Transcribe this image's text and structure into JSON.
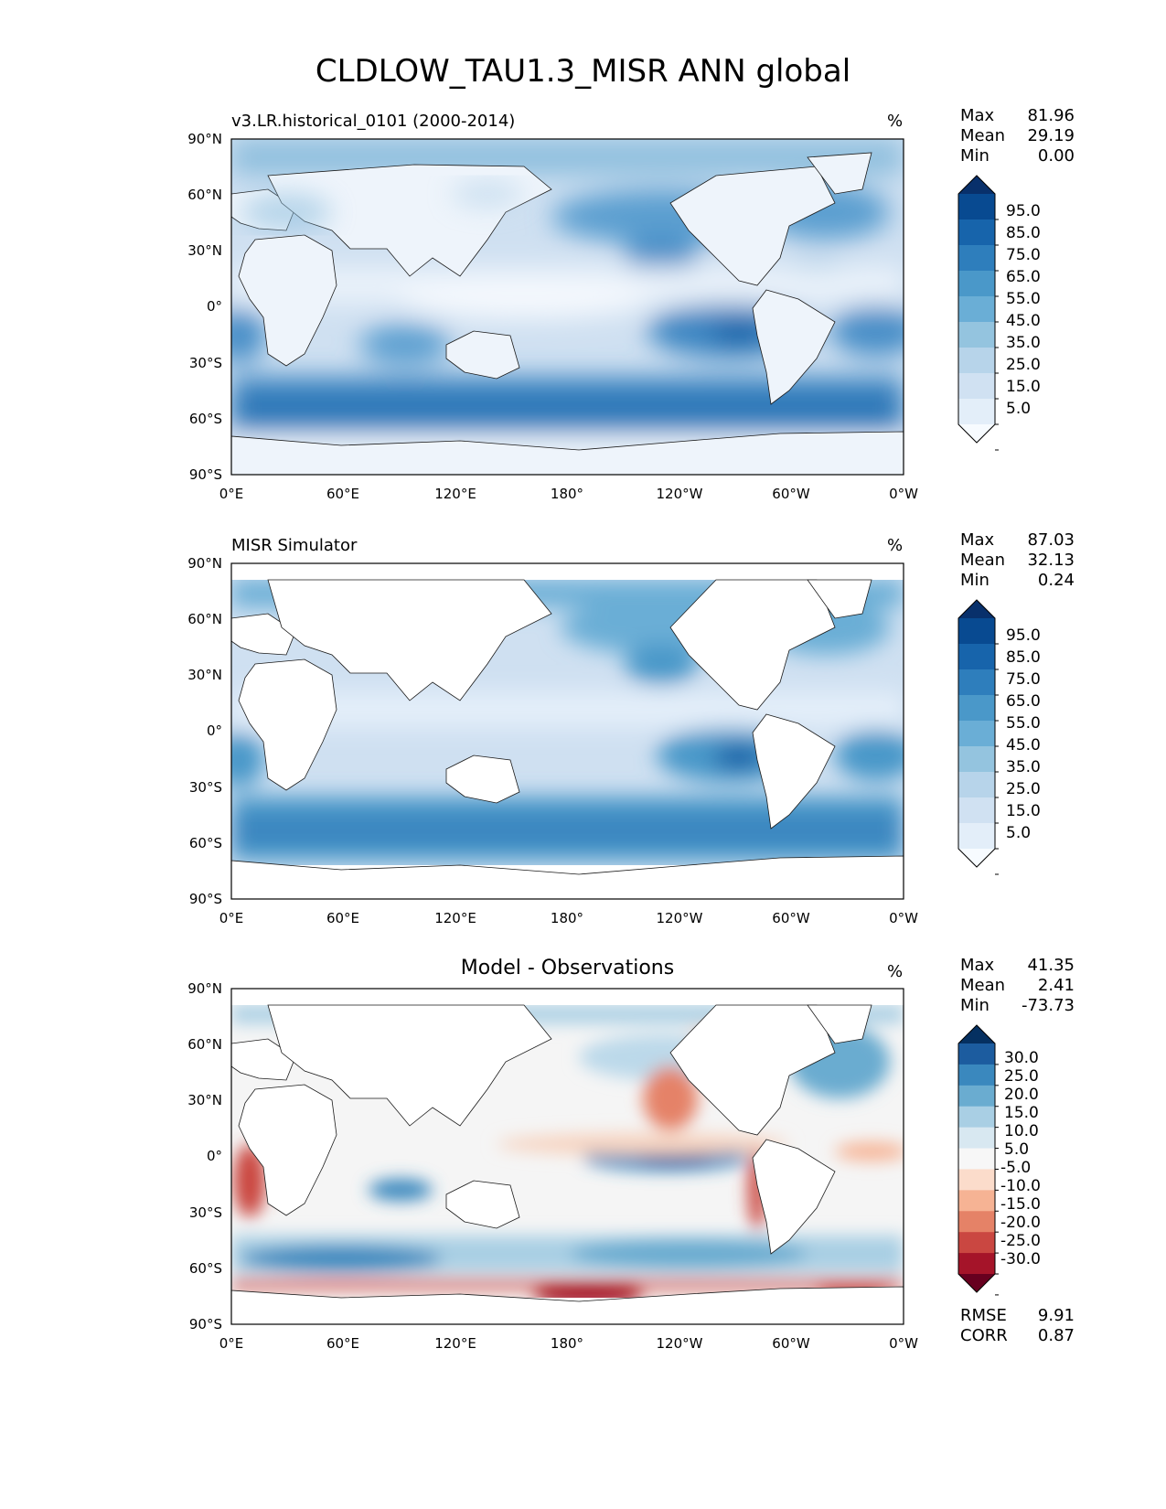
{
  "figure": {
    "title": "CLDLOW_TAU1.3_MISR ANN global"
  },
  "axes": {
    "lat_ticks": [
      "90°N",
      "60°N",
      "30°N",
      "0°",
      "30°S",
      "60°S",
      "90°S"
    ],
    "lon_ticks": [
      "0°E",
      "60°E",
      "120°E",
      "180°",
      "120°W",
      "60°W",
      "0°W"
    ]
  },
  "panels": [
    {
      "id": "model",
      "title": "v3.LR.historical_0101 (2000-2014)",
      "unit": "%",
      "stats": [
        {
          "label": "Max",
          "value": "81.96"
        },
        {
          "label": "Mean",
          "value": "29.19"
        },
        {
          "label": "Min",
          "value": "0.00"
        }
      ],
      "colorbar": {
        "ticks": [
          "95.0",
          "85.0",
          "75.0",
          "65.0",
          "55.0",
          "45.0",
          "35.0",
          "25.0",
          "15.0",
          "5.0"
        ],
        "colors": [
          "#f7fbff",
          "#e3eef9",
          "#d0e1f2",
          "#b7d4ea",
          "#94c4df",
          "#6aaed6",
          "#4a98c9",
          "#2e7ebc",
          "#1764ab",
          "#084a91",
          "#08306b"
        ]
      }
    },
    {
      "id": "obs",
      "title": "MISR Simulator",
      "unit": "%",
      "stats": [
        {
          "label": "Max",
          "value": "87.03"
        },
        {
          "label": "Mean",
          "value": "32.13"
        },
        {
          "label": "Min",
          "value": "0.24"
        }
      ],
      "colorbar": {
        "ticks": [
          "95.0",
          "85.0",
          "75.0",
          "65.0",
          "55.0",
          "45.0",
          "35.0",
          "25.0",
          "15.0",
          "5.0"
        ],
        "colors": [
          "#f7fbff",
          "#e3eef9",
          "#d0e1f2",
          "#b7d4ea",
          "#94c4df",
          "#6aaed6",
          "#4a98c9",
          "#2e7ebc",
          "#1764ab",
          "#084a91",
          "#08306b"
        ]
      }
    },
    {
      "id": "diff",
      "title": "Model - Observations",
      "unit": "%",
      "stats": [
        {
          "label": "Max",
          "value": "41.35"
        },
        {
          "label": "Mean",
          "value": "2.41"
        },
        {
          "label": "Min",
          "value": "-73.73"
        }
      ],
      "metrics": [
        {
          "label": "RMSE",
          "value": "9.91"
        },
        {
          "label": "CORR",
          "value": "0.87"
        }
      ],
      "colorbar": {
        "ticks": [
          "30.0",
          "25.0",
          "20.0",
          "15.0",
          "10.0",
          "5.0",
          "-5.0",
          "-10.0",
          "-15.0",
          "-20.0",
          "-25.0",
          "-30.0"
        ],
        "colors": [
          "#67001f",
          "#a51429",
          "#ca4741",
          "#e58267",
          "#f6b394",
          "#fbdccb",
          "#f7f7f7",
          "#d8e8f1",
          "#a9cfe4",
          "#6aacd0",
          "#3a88be",
          "#1c5c9f",
          "#053061"
        ]
      }
    }
  ],
  "colors": {
    "land": "#ffffff",
    "coast": "#1a1a1a"
  }
}
